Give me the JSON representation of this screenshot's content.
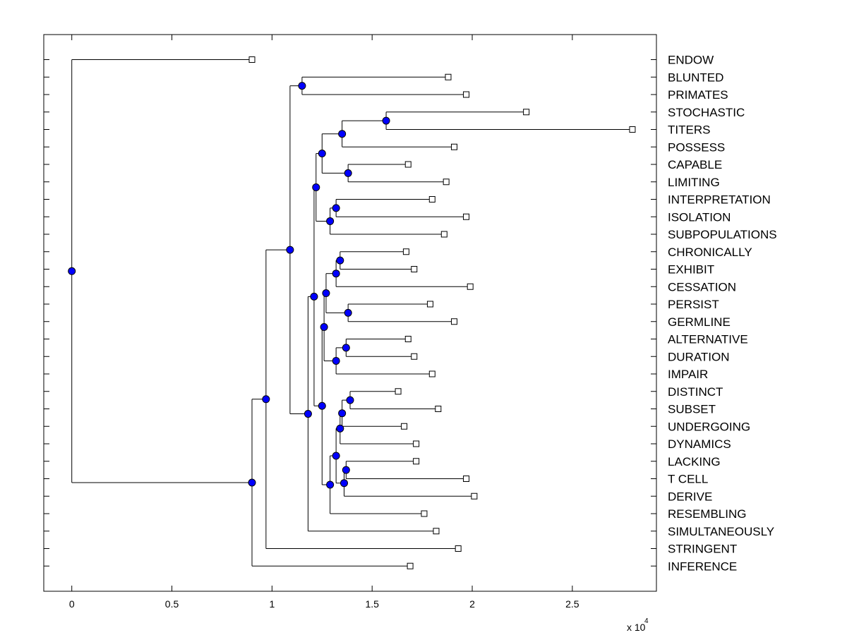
{
  "chart_data": {
    "type": "dendrogram",
    "title": "",
    "xlabel": "",
    "ylabel": "",
    "x_multiplier_label": "x 10",
    "x_multiplier_exponent": "4",
    "xlim": [
      -1400,
      29200
    ],
    "x_ticks": [
      {
        "value": 0,
        "label": "0"
      },
      {
        "value": 5000,
        "label": "0.5"
      },
      {
        "value": 10000,
        "label": "1"
      },
      {
        "value": 15000,
        "label": "1.5"
      },
      {
        "value": 20000,
        "label": "2"
      },
      {
        "value": 25000,
        "label": "2.5"
      }
    ],
    "grid": false,
    "colors": {
      "node": "#0000ff",
      "node_stroke": "#000000",
      "line": "#000000",
      "leaf_fill": "#ffffff"
    },
    "leaves": [
      {
        "label": "ENDOW",
        "x": 9000
      },
      {
        "label": "BLUNTED",
        "x": 18800
      },
      {
        "label": "PRIMATES",
        "x": 19700
      },
      {
        "label": "STOCHASTIC",
        "x": 22700
      },
      {
        "label": "TITERS",
        "x": 28000
      },
      {
        "label": "POSSESS",
        "x": 19100
      },
      {
        "label": "CAPABLE",
        "x": 16800
      },
      {
        "label": "LIMITING",
        "x": 18700
      },
      {
        "label": "INTERPRETATION",
        "x": 18000
      },
      {
        "label": "ISOLATION",
        "x": 19700
      },
      {
        "label": "SUBPOPULATIONS",
        "x": 18600
      },
      {
        "label": "CHRONICALLY",
        "x": 16700
      },
      {
        "label": "EXHIBIT",
        "x": 17100
      },
      {
        "label": "CESSATION",
        "x": 19900
      },
      {
        "label": "PERSIST",
        "x": 17900
      },
      {
        "label": "GERMLINE",
        "x": 19100
      },
      {
        "label": "ALTERNATIVE",
        "x": 16800
      },
      {
        "label": "DURATION",
        "x": 17100
      },
      {
        "label": "IMPAIR",
        "x": 18000
      },
      {
        "label": "DISTINCT",
        "x": 16300
      },
      {
        "label": "SUBSET",
        "x": 18300
      },
      {
        "label": "UNDERGOING",
        "x": 16600
      },
      {
        "label": "DYNAMICS",
        "x": 17200
      },
      {
        "label": "LACKING",
        "x": 17200
      },
      {
        "label": "T CELL",
        "x": 19700
      },
      {
        "label": "DERIVE",
        "x": 20100
      },
      {
        "label": "RESEMBLING",
        "x": 17600
      },
      {
        "label": "SIMULTANEOUSLY",
        "x": 18200
      },
      {
        "label": "STRINGENT",
        "x": 19300
      },
      {
        "label": "INFERENCE",
        "x": 16900
      }
    ],
    "nodes": [
      {
        "x": 11500,
        "children": [
          "L1",
          "L2"
        ]
      },
      {
        "x": 15700,
        "children": [
          "L3",
          "L4"
        ]
      },
      {
        "x": 13500,
        "children": [
          "N1",
          "L5"
        ]
      },
      {
        "x": 13800,
        "children": [
          "L6",
          "L7"
        ]
      },
      {
        "x": 12500,
        "children": [
          "N2",
          "N3"
        ]
      },
      {
        "x": 13200,
        "children": [
          "L8",
          "L9"
        ]
      },
      {
        "x": 12900,
        "children": [
          "N5",
          "L10"
        ]
      },
      {
        "x": 12200,
        "children": [
          "N4",
          "N6"
        ]
      },
      {
        "x": 13400,
        "children": [
          "L11",
          "L12"
        ]
      },
      {
        "x": 13200,
        "children": [
          "N8",
          "L13"
        ]
      },
      {
        "x": 13800,
        "children": [
          "L14",
          "L15"
        ]
      },
      {
        "x": 12700,
        "children": [
          "N9",
          "N10"
        ]
      },
      {
        "x": 13700,
        "children": [
          "L16",
          "L17"
        ]
      },
      {
        "x": 13200,
        "children": [
          "N12",
          "L18"
        ]
      },
      {
        "x": 12600,
        "children": [
          "N11",
          "N13"
        ]
      },
      {
        "x": 13900,
        "children": [
          "L19",
          "L20"
        ]
      },
      {
        "x": 13500,
        "children": [
          "N15",
          "L21"
        ]
      },
      {
        "x": 13400,
        "children": [
          "N16",
          "L22"
        ]
      },
      {
        "x": 13700,
        "children": [
          "L23",
          "L24"
        ]
      },
      {
        "x": 13600,
        "children": [
          "N18",
          "L25"
        ]
      },
      {
        "x": 13200,
        "children": [
          "N17",
          "N19"
        ]
      },
      {
        "x": 12900,
        "children": [
          "N20",
          "L26"
        ]
      },
      {
        "x": 12500,
        "children": [
          "N14",
          "N21"
        ]
      },
      {
        "x": 12100,
        "children": [
          "N7",
          "N22"
        ]
      },
      {
        "x": 11800,
        "children": [
          "N23",
          "L27"
        ]
      },
      {
        "x": 10900,
        "children": [
          "N0",
          "N24"
        ]
      },
      {
        "x": 9700,
        "children": [
          "N25",
          "L28"
        ]
      },
      {
        "x": 9000,
        "children": [
          "N26",
          "L29"
        ]
      },
      {
        "x": 0,
        "children": [
          "L0",
          "N27"
        ]
      }
    ]
  }
}
